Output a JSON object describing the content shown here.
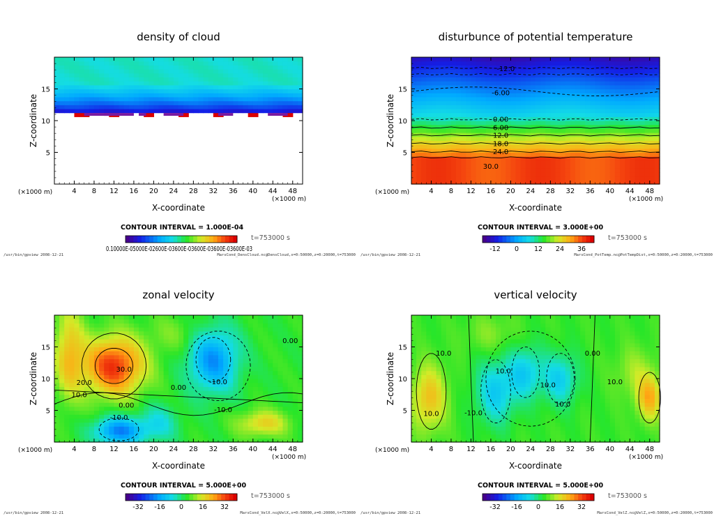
{
  "chart_data": [
    {
      "type": "heatmap",
      "title": "density of cloud",
      "xlabel": "X-coordinate",
      "ylabel": "Z-coordinate",
      "x_unit": "(×1000 m)",
      "y_unit": "(×1000 m)",
      "xlim": [
        0,
        50
      ],
      "ylim": [
        0,
        20
      ],
      "x_ticks": [
        "4",
        "8",
        "12",
        "16",
        "20",
        "24",
        "28",
        "32",
        "36",
        "40",
        "44",
        "48"
      ],
      "y_ticks": [
        "5",
        "10",
        "15"
      ],
      "contour_interval_label": "CONTOUR INTERVAL = 1.000E-04",
      "time_label": "t=753000 s",
      "colorbar_labels": "0.10000E-05000E-02600E-03600E-03600E-03600E-03600E-03",
      "cloud_base_z": 11,
      "footer_left": "/usr/bin/gpview   2008-12-21",
      "footer_right": "MarsCond_DensCloud.nc@DensCloud,x=0:50000,z=0:20000,t=753000",
      "contour_labels": []
    },
    {
      "type": "heatmap",
      "title": "disturbunce of potential temperature",
      "xlabel": "X-coordinate",
      "ylabel": "Z-coordinate",
      "x_unit": "(×1000 m)",
      "y_unit": "(×1000 m)",
      "xlim": [
        0,
        50
      ],
      "ylim": [
        0,
        20
      ],
      "x_ticks": [
        "4",
        "8",
        "12",
        "16",
        "20",
        "24",
        "28",
        "32",
        "36",
        "40",
        "44",
        "48"
      ],
      "y_ticks": [
        "5",
        "10",
        "15"
      ],
      "contour_interval_label": "CONTOUR INTERVAL = 3.000E+00",
      "time_label": "t=753000 s",
      "colorbar_ticks": [
        "-12",
        "0",
        "12",
        "24",
        "36"
      ],
      "footer_left": "/usr/bin/gpview   2008-12-21",
      "footer_right": "MarsCond_PotTemp.nc@PotTempDist,x=0:50000,z=0:20000,t=753000",
      "contour_labels": [
        {
          "text": "-12.0",
          "x": 19,
          "z": 18.2
        },
        {
          "text": "-6.00",
          "x": 18,
          "z": 14.4
        },
        {
          "text": "0.00",
          "x": 18,
          "z": 10.2
        },
        {
          "text": "6.00",
          "x": 18,
          "z": 8.9
        },
        {
          "text": "12.0",
          "x": 18,
          "z": 7.7
        },
        {
          "text": "18.0",
          "x": 18,
          "z": 6.4
        },
        {
          "text": "24.0",
          "x": 18,
          "z": 5.1
        },
        {
          "text": "30.0",
          "x": 16,
          "z": 2.8
        }
      ]
    },
    {
      "type": "heatmap",
      "title": "zonal velocity",
      "xlabel": "X-coordinate",
      "ylabel": "Z-coordinate",
      "x_unit": "(×1000 m)",
      "y_unit": "(×1000 m)",
      "xlim": [
        0,
        50
      ],
      "ylim": [
        0,
        20
      ],
      "x_ticks": [
        "4",
        "8",
        "12",
        "16",
        "20",
        "24",
        "28",
        "32",
        "36",
        "40",
        "44",
        "48"
      ],
      "y_ticks": [
        "5",
        "10",
        "15"
      ],
      "contour_interval_label": "CONTOUR INTERVAL = 5.000E+00",
      "time_label": "t=753000 s",
      "colorbar_ticks": [
        "-32",
        "-16",
        "0",
        "16",
        "32"
      ],
      "footer_left": "/usr/bin/gpview   2008-12-21",
      "footer_right": "MarsCond_VelX.nc@VelX,x=0:50000,z=0:20000,t=753000",
      "contour_labels": [
        {
          "text": "30.0",
          "x": 14,
          "z": 11.5
        },
        {
          "text": "20.0",
          "x": 6,
          "z": 9.4
        },
        {
          "text": "10.0",
          "x": 5,
          "z": 7.5
        },
        {
          "text": "0.00",
          "x": 14.5,
          "z": 5.8
        },
        {
          "text": "-10.0",
          "x": 13,
          "z": 3.9
        },
        {
          "text": "0.00",
          "x": 25,
          "z": 8.6
        },
        {
          "text": "-10.0",
          "x": 33,
          "z": 9.5
        },
        {
          "text": "-10.0",
          "x": 34,
          "z": 5.1
        },
        {
          "text": "0.00",
          "x": 47.5,
          "z": 16
        }
      ]
    },
    {
      "type": "heatmap",
      "title": "vertical velocity",
      "xlabel": "X-coordinate",
      "ylabel": "Z-coordinate",
      "x_unit": "(×1000 m)",
      "y_unit": "(×1000 m)",
      "xlim": [
        0,
        50
      ],
      "ylim": [
        0,
        20
      ],
      "x_ticks": [
        "4",
        "8",
        "12",
        "16",
        "20",
        "24",
        "28",
        "32",
        "36",
        "40",
        "44",
        "48"
      ],
      "y_ticks": [
        "5",
        "10",
        "15"
      ],
      "contour_interval_label": "CONTOUR INTERVAL = 5.000E+00",
      "time_label": "t=753000 s",
      "colorbar_ticks": [
        "-32",
        "-16",
        "0",
        "16",
        "32"
      ],
      "footer_left": "/usr/bin/gpview   2008-12-21",
      "footer_right": "MarsCond_VelZ.nc@VelZ,x=0:50000,z=0:20000,t=753000",
      "contour_labels": [
        {
          "text": "10.0",
          "x": 6.5,
          "z": 14
        },
        {
          "text": "10.0",
          "x": 18.5,
          "z": 11.2
        },
        {
          "text": "-10.0",
          "x": 12.5,
          "z": 4.6
        },
        {
          "text": "10.0",
          "x": 27.5,
          "z": 9
        },
        {
          "text": "10.0",
          "x": 30.5,
          "z": 6
        },
        {
          "text": "0.00",
          "x": 36.5,
          "z": 14
        },
        {
          "text": "10.0",
          "x": 41,
          "z": 9.5
        },
        {
          "text": "10.0",
          "x": 4,
          "z": 4.5
        }
      ]
    }
  ]
}
